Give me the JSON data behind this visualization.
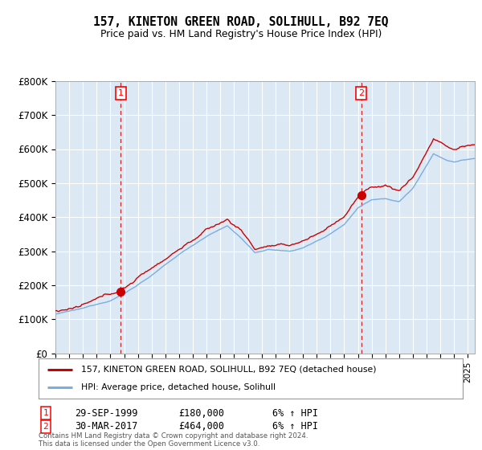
{
  "title": "157, KINETON GREEN ROAD, SOLIHULL, B92 7EQ",
  "subtitle": "Price paid vs. HM Land Registry's House Price Index (HPI)",
  "ylabel_ticks": [
    "£0",
    "£100K",
    "£200K",
    "£300K",
    "£400K",
    "£500K",
    "£600K",
    "£700K",
    "£800K"
  ],
  "ylim": [
    0,
    800000
  ],
  "xlim_start": 1995.0,
  "xlim_end": 2025.5,
  "sale1_x": 1999.75,
  "sale1_y": 180000,
  "sale1_label": "1",
  "sale1_date": "29-SEP-1999",
  "sale1_price": "£180,000",
  "sale1_hpi": "6% ↑ HPI",
  "sale2_x": 2017.25,
  "sale2_y": 464000,
  "sale2_label": "2",
  "sale2_date": "30-MAR-2017",
  "sale2_price": "£464,000",
  "sale2_hpi": "6% ↑ HPI",
  "line_color_price": "#cc0000",
  "line_color_hpi": "#7aade0",
  "plot_bg_color": "#dce9f5",
  "dashed_vline_color": "#cc0000",
  "legend_label_price": "157, KINETON GREEN ROAD, SOLIHULL, B92 7EQ (detached house)",
  "legend_label_hpi": "HPI: Average price, detached house, Solihull",
  "footer": "Contains HM Land Registry data © Crown copyright and database right 2024.\nThis data is licensed under the Open Government Licence v3.0.",
  "background_color": "#ffffff",
  "grid_color": "#ffffff"
}
